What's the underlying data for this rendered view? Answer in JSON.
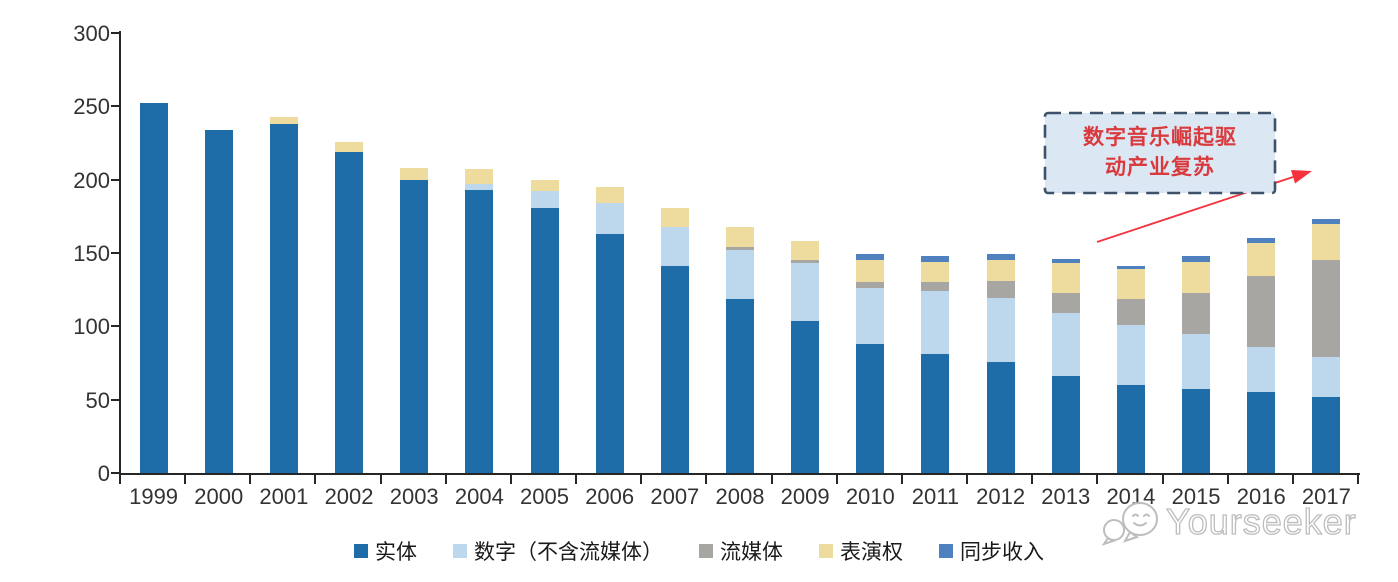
{
  "chart_data": {
    "type": "bar",
    "stacked": true,
    "title": "",
    "xlabel": "",
    "ylabel": "",
    "ylim": [
      0,
      300
    ],
    "yticks": [
      0,
      50,
      100,
      150,
      200,
      250,
      300
    ],
    "grid": false,
    "legend_position": "bottom",
    "categories": [
      "1999",
      "2000",
      "2001",
      "2002",
      "2003",
      "2004",
      "2005",
      "2006",
      "2007",
      "2008",
      "2009",
      "2010",
      "2011",
      "2012",
      "2013",
      "2014",
      "2015",
      "2016",
      "2017"
    ],
    "series": [
      {
        "name": "实体",
        "color": "#1E6CA8",
        "values": [
          252,
          234,
          238,
          219,
          200,
          193,
          181,
          163,
          141,
          119,
          104,
          88,
          81,
          76,
          66,
          60,
          57,
          55,
          52
        ]
      },
      {
        "name": "数字（不含流媒体）",
        "color": "#BDD7EC",
        "values": [
          0,
          0,
          0,
          0,
          0,
          4,
          11,
          21,
          27,
          33,
          39,
          38,
          43,
          43,
          43,
          41,
          38,
          31,
          27
        ]
      },
      {
        "name": "流媒体",
        "color": "#A8A6A3",
        "values": [
          0,
          0,
          0,
          0,
          0,
          0,
          0,
          0,
          0,
          2,
          2,
          4,
          6,
          12,
          14,
          18,
          28,
          48,
          66
        ]
      },
      {
        "name": "表演权",
        "color": "#EEDC9F",
        "values": [
          0,
          0,
          5,
          7,
          8,
          10,
          8,
          11,
          13,
          14,
          13,
          15,
          14,
          14,
          20,
          20,
          21,
          23,
          25
        ]
      },
      {
        "name": "同步收入",
        "color": "#4E81BD",
        "values": [
          0,
          0,
          0,
          0,
          0,
          0,
          0,
          0,
          0,
          0,
          0,
          4,
          4,
          4,
          3,
          2,
          4,
          3,
          3
        ]
      }
    ],
    "totals": [
      252,
      234,
      243,
      226,
      208,
      207,
      200,
      195,
      181,
      168,
      158,
      149,
      148,
      149,
      146,
      141,
      148,
      160,
      173
    ]
  },
  "annotation": {
    "line1": "数字音乐崛起驱",
    "line2": "动产业复苏",
    "text_color": "#D93A3E",
    "border_color": "#3D5168",
    "box_fill": "#DBE8F4",
    "arrow_color": "#F5333F"
  },
  "axis": {
    "line_color": "#262626",
    "label_color": "#333333"
  },
  "watermark": {
    "text": "Yourseeker",
    "icon": "chat-bubbles-icon",
    "color": "#BDBDBD"
  }
}
